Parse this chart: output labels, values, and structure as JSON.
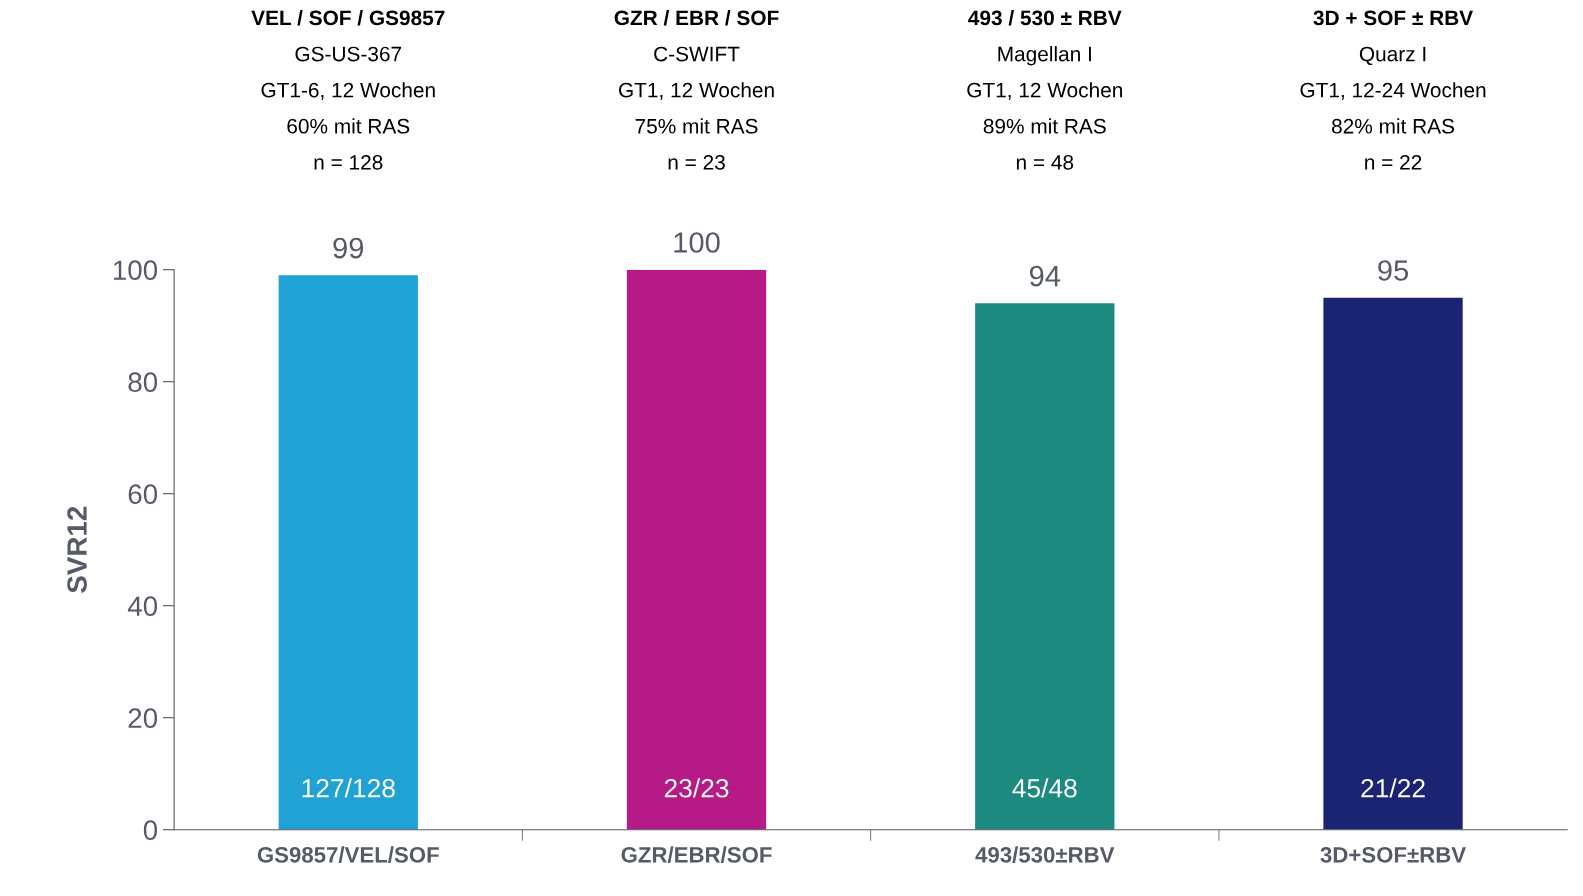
{
  "chart_data": {
    "type": "bar",
    "ylabel": "SVR12",
    "categories": [
      "GS9857/VEL/SOF",
      "GZR/EBR/SOF",
      "493/530±RBV",
      "3D+SOF±RBV"
    ],
    "values": [
      99,
      100,
      94,
      95
    ],
    "colors": [
      "#21a2d5",
      "#b51a87",
      "#1d8a80",
      "#1a2472"
    ],
    "ylim": [
      0,
      100
    ],
    "yticks": [
      0,
      20,
      40,
      60,
      80,
      100
    ],
    "grid": false,
    "data_labels": true,
    "annotations": [
      "VEL / SOF / GS9857\nGS-US-367\nGT1-6, 12 Wochen\n60% mit RAS\nn = 128",
      "GZR / EBR / SOF\nC-SWIFT\nGT1, 12 Wochen\n75% mit RAS\nn = 23",
      "493 / 530 ± RBV\nMagellan I\nGT1, 12 Wochen\n89% mit RAS\nn = 48",
      "3D + SOF ± RBV\nQuarz I\nGT1, 12-24 Wochen\n82% mit RAS\nn = 22",
      "127/128",
      "23/23",
      "45/48",
      "21/22"
    ]
  }
}
